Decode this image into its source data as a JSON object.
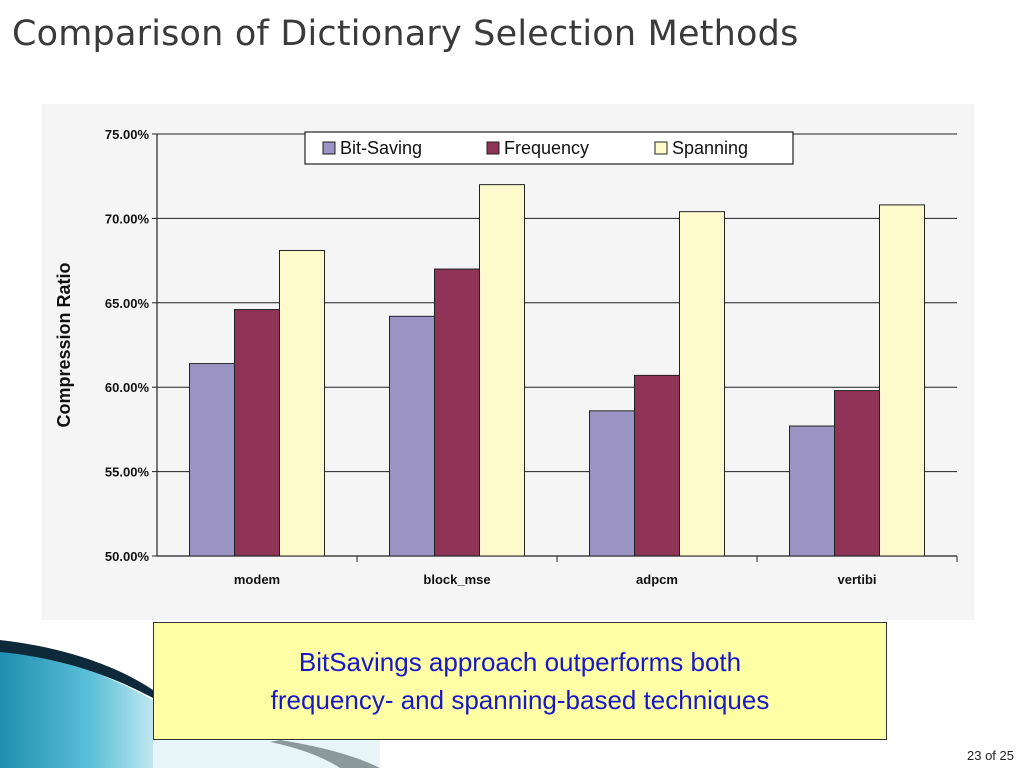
{
  "slide": {
    "title": "Comparison of Dictionary Selection Methods",
    "callout_line1": "BitSavings approach outperforms both",
    "callout_line2": "frequency- and spanning-based techniques",
    "page_number": "23 of 25"
  },
  "colors": {
    "bit_saving": "#9b93c4",
    "frequency": "#8f3456",
    "spanning": "#fdfbcc",
    "callout_bg": "#ffffa6",
    "callout_text": "#1818c8"
  },
  "chart_data": {
    "type": "bar",
    "ylabel": "Compression Ratio",
    "xlabel": "",
    "categories": [
      "modem",
      "block_mse",
      "adpcm",
      "vertibi"
    ],
    "series": [
      {
        "name": "Bit-Saving",
        "color": "#9b93c4",
        "values": [
          61.4,
          64.2,
          58.6,
          57.7
        ]
      },
      {
        "name": "Frequency",
        "color": "#8f3456",
        "values": [
          64.6,
          67.0,
          60.7,
          59.8
        ]
      },
      {
        "name": "Spanning",
        "color": "#fdfbcc",
        "values": [
          68.1,
          72.0,
          70.4,
          70.8
        ]
      }
    ],
    "ylim": [
      50,
      75
    ],
    "yticks": [
      "50.00%",
      "55.00%",
      "60.00%",
      "65.00%",
      "70.00%",
      "75.00%"
    ],
    "grid": true,
    "legend": "top"
  }
}
